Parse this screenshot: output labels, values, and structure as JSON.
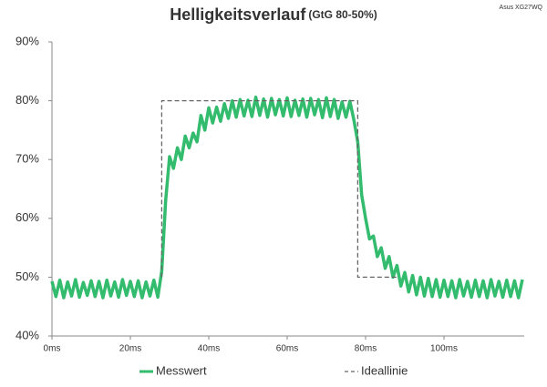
{
  "chart_data": {
    "type": "line",
    "title": "Helligkeitsverlauf",
    "subtitle": "(GtG 80-50%)",
    "annotation": "Asus XG27WQ",
    "xlim": [
      0,
      120
    ],
    "ylim": [
      40,
      90
    ],
    "xticks": [
      {
        "value": 0,
        "label": "0ms"
      },
      {
        "value": 20,
        "label": "20ms"
      },
      {
        "value": 40,
        "label": "40ms"
      },
      {
        "value": 60,
        "label": "60ms"
      },
      {
        "value": 80,
        "label": "80ms"
      },
      {
        "value": 100,
        "label": "100ms"
      }
    ],
    "yticks": [
      {
        "value": 40,
        "label": "40%"
      },
      {
        "value": 50,
        "label": "50%"
      },
      {
        "value": 60,
        "label": "60%"
      },
      {
        "value": 70,
        "label": "70%"
      },
      {
        "value": 80,
        "label": "80%"
      },
      {
        "value": 90,
        "label": "90%"
      }
    ],
    "grid": false,
    "series": [
      {
        "name": "Messwert",
        "color": "#33bb6e",
        "style": "solid",
        "x": [
          0,
          1,
          2,
          3,
          4,
          5,
          6,
          7,
          8,
          9,
          10,
          11,
          12,
          13,
          14,
          15,
          16,
          17,
          18,
          19,
          20,
          21,
          22,
          23,
          24,
          25,
          26,
          27,
          28,
          29,
          30,
          31,
          32,
          33,
          34,
          35,
          36,
          37,
          38,
          39,
          40,
          41,
          42,
          43,
          44,
          45,
          46,
          47,
          48,
          49,
          50,
          51,
          52,
          53,
          54,
          55,
          56,
          57,
          58,
          59,
          60,
          61,
          62,
          63,
          64,
          65,
          66,
          67,
          68,
          69,
          70,
          71,
          72,
          73,
          74,
          75,
          76,
          77,
          78,
          79,
          80,
          81,
          82,
          83,
          84,
          85,
          86,
          87,
          88,
          89,
          90,
          91,
          92,
          93,
          94,
          95,
          96,
          97,
          98,
          99,
          100,
          101,
          102,
          103,
          104,
          105,
          106,
          107,
          108,
          109,
          110,
          111,
          112,
          113,
          114,
          115,
          116,
          117,
          118,
          119,
          120
        ],
        "values": [
          49.3,
          46.7,
          49.5,
          46.5,
          49.2,
          46.8,
          49.6,
          46.6,
          49.1,
          46.9,
          49.4,
          46.7,
          49.3,
          46.5,
          49.5,
          46.8,
          49.2,
          46.6,
          49.6,
          46.9,
          49.3,
          46.7,
          49.4,
          46.5,
          49.2,
          46.8,
          49.5,
          46.6,
          51,
          63,
          70.5,
          68.5,
          72,
          70,
          74,
          72,
          74.5,
          73,
          77.5,
          75,
          78.8,
          76.2,
          78.9,
          76.5,
          79.5,
          77,
          80,
          77.2,
          80.2,
          77.4,
          80.1,
          77.3,
          80.6,
          77.5,
          80.3,
          77.2,
          80.4,
          77.6,
          80.2,
          77.4,
          80.5,
          77.3,
          80.1,
          77.5,
          80.3,
          77.2,
          80.4,
          77.6,
          80.2,
          77.1,
          80.5,
          77.3,
          80.2,
          77,
          79.8,
          77.2,
          79.9,
          76.8,
          73,
          64,
          60,
          56.5,
          57,
          53.5,
          55,
          51.5,
          53.5,
          50,
          52,
          48.5,
          50.8,
          47.5,
          50.3,
          47,
          50,
          46.8,
          49.8,
          46.7,
          49.6,
          46.6,
          49.5,
          46.7,
          49.4,
          46.5,
          49.6,
          46.8,
          49.3,
          46.6,
          49.5,
          46.7,
          49.4,
          46.5,
          49.6,
          46.8,
          49.3,
          46.6,
          49.5,
          46.7,
          49.4,
          46.5,
          49.6
        ]
      },
      {
        "name": "Ideallinie",
        "color": "#666666",
        "style": "dashed",
        "x": [
          28,
          28,
          78,
          78,
          88
        ],
        "values": [
          50,
          80,
          80,
          50,
          50
        ]
      }
    ]
  }
}
